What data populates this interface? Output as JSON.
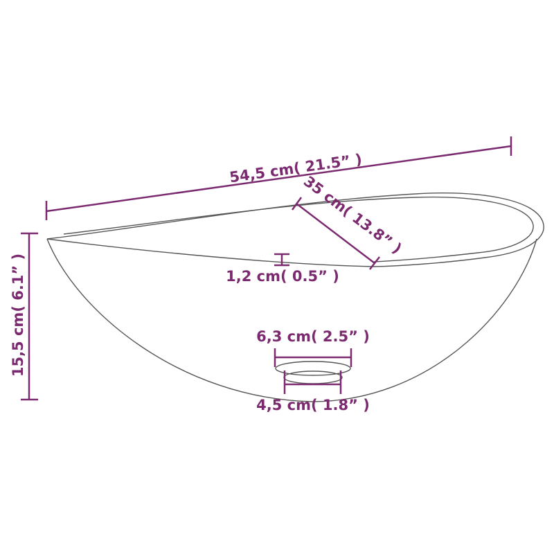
{
  "colors": {
    "dimension": "#7b2a6f",
    "outline": "#555555",
    "background": "#ffffff"
  },
  "dimensions": {
    "length": "54,5 cm( 21.5”  )",
    "height": "15,5 cm( 6.1”  )",
    "width": "35 cm( 13.8”  )",
    "rim_thickness": "1,2 cm( 0.5”  )",
    "drain_outer": "6,3 cm( 2.5”  )",
    "drain_inner": "4,5 cm( 1.8”  )"
  }
}
